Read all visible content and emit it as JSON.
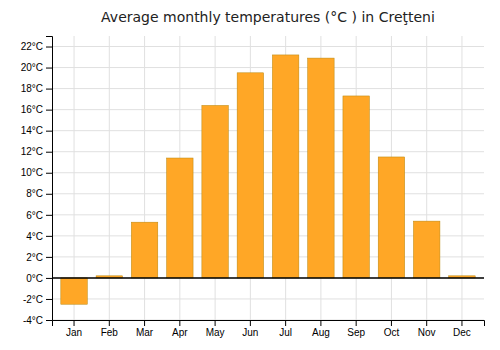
{
  "chart_data": {
    "type": "bar",
    "title": "Average monthly temperatures (°C ) in Creţteni",
    "categories": [
      "Jan",
      "Feb",
      "Mar",
      "Apr",
      "May",
      "Jun",
      "Jul",
      "Aug",
      "Sep",
      "Oct",
      "Nov",
      "Dec"
    ],
    "values": [
      -2.5,
      0.2,
      5.3,
      11.4,
      16.4,
      19.5,
      21.2,
      20.9,
      17.3,
      11.5,
      5.4,
      0.2
    ],
    "color": "#FFA726",
    "ylim": [
      -4,
      23
    ],
    "yticks": [
      {
        "value": -4,
        "label": "-4°C"
      },
      {
        "value": -2,
        "label": "-2°C"
      },
      {
        "value": 0,
        "label": "0°C"
      },
      {
        "value": 2,
        "label": "2°C"
      },
      {
        "value": 4,
        "label": "4°C"
      },
      {
        "value": 6,
        "label": "6°C"
      },
      {
        "value": 8,
        "label": "8°C"
      },
      {
        "value": 10,
        "label": "10°C"
      },
      {
        "value": 12,
        "label": "12°C"
      },
      {
        "value": 14,
        "label": "14°C"
      },
      {
        "value": 16,
        "label": "16°C"
      },
      {
        "value": 18,
        "label": "18°C"
      },
      {
        "value": 20,
        "label": "20°C"
      },
      {
        "value": 22,
        "label": "22°C"
      }
    ],
    "grid": true
  }
}
